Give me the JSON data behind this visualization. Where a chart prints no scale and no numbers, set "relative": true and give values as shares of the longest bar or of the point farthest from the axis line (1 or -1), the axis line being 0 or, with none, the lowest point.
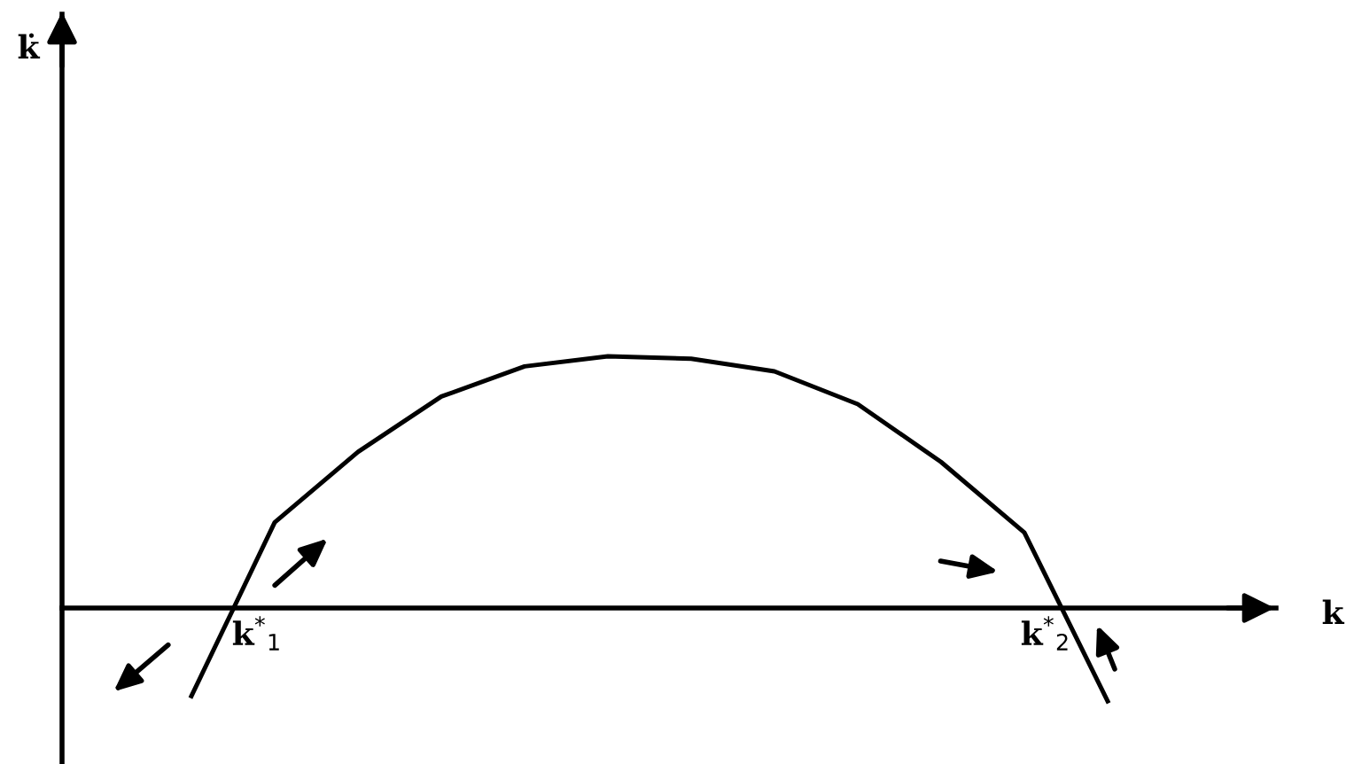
{
  "chart_data": {
    "type": "line",
    "relative": true,
    "categories": [
      null,
      null,
      null,
      null,
      null,
      null,
      null,
      null,
      null,
      null,
      null,
      null
    ],
    "series": [
      {
        "color": "#000000",
        "values": [
          -0.35,
          0.34,
          0.62,
          0.84,
          0.96,
          1.0,
          0.99,
          0.94,
          0.81,
          0.58,
          0.3,
          -0.37
        ]
      }
    ],
    "annotations": [
      "k̇",
      "k",
      "k$^{*}$$_{1}$",
      "k$^{*}$$_{2}$"
    ],
    "legend": false,
    "marker": "none",
    "line_style": "solid"
  }
}
